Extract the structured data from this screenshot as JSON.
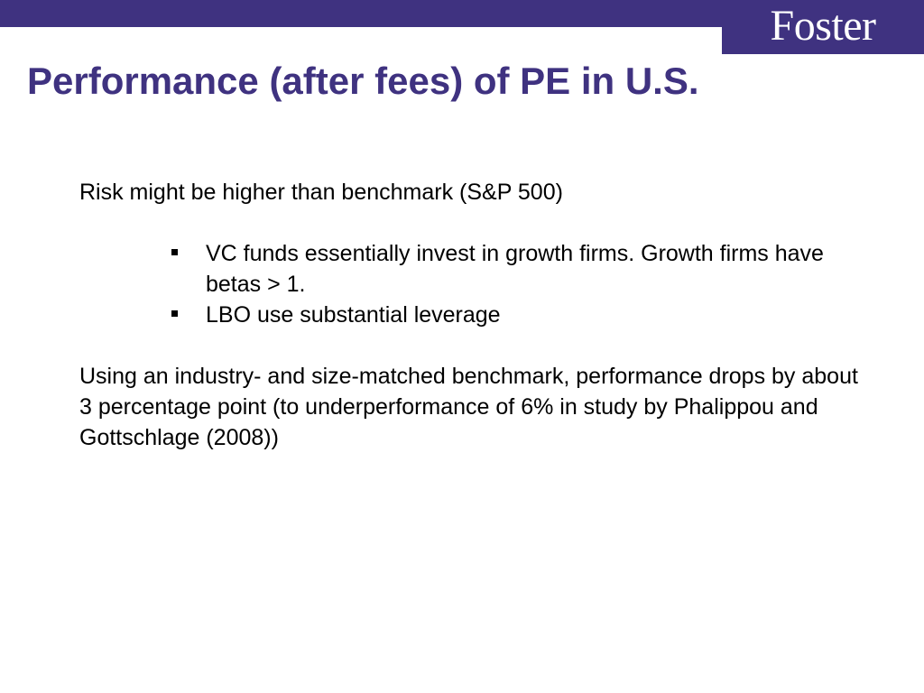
{
  "branding": {
    "logo_text": "Foster",
    "brand_color": "#3f3280"
  },
  "slide": {
    "title": "Performance (after fees) of PE in U.S.",
    "intro": "Risk might be higher than benchmark (S&P 500)",
    "bullets": [
      "VC funds essentially invest in growth firms. Growth firms have betas > 1.",
      "LBO use substantial leverage"
    ],
    "conclusion": "Using an industry- and size-matched benchmark, performance drops by about 3 percentage point (to underperformance of 6% in study by Phalippou and Gottschlage (2008))"
  }
}
